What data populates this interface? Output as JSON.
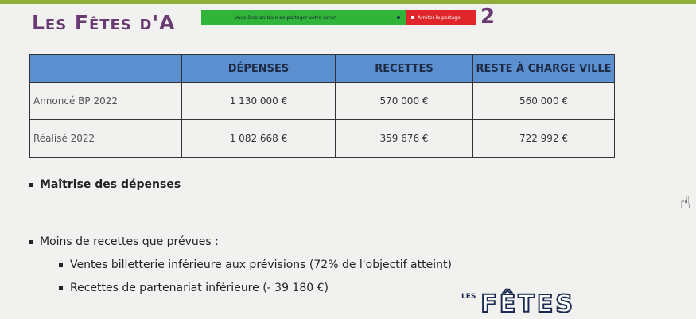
{
  "slide": {
    "title_start": "Les Fêtes d'A",
    "title_end": "2"
  },
  "screen_share": {
    "message": "Vous êtes en train de partager votre écran",
    "stop_label": "Arrêter le partage",
    "bar_color": "#31b43a",
    "stop_color": "#e0262a"
  },
  "table": {
    "headers": [
      "",
      "DÉPENSES",
      "RECETTES",
      "RESTE À CHARGE VILLE"
    ],
    "rows": [
      [
        "Annoncé BP 2022",
        "1 130 000 €",
        "570 000 €",
        "560 000 €"
      ],
      [
        "Réalisé 2022",
        "1 082 668 €",
        "359 676 €",
        "722 992 €"
      ]
    ],
    "header_color": "#5b8fd0"
  },
  "bullets": [
    {
      "text": "Maîtrise des dépenses"
    },
    {
      "text": "Moins de recettes que prévues :"
    }
  ],
  "sub_bullets": [
    {
      "text": "Ventes billetterie inférieure aux prévisions (72% de l'objectif atteint)"
    },
    {
      "text": "Recettes de partenariat inférieure (- 39 180 €)"
    }
  ],
  "logo": {
    "text": "LES"
  }
}
